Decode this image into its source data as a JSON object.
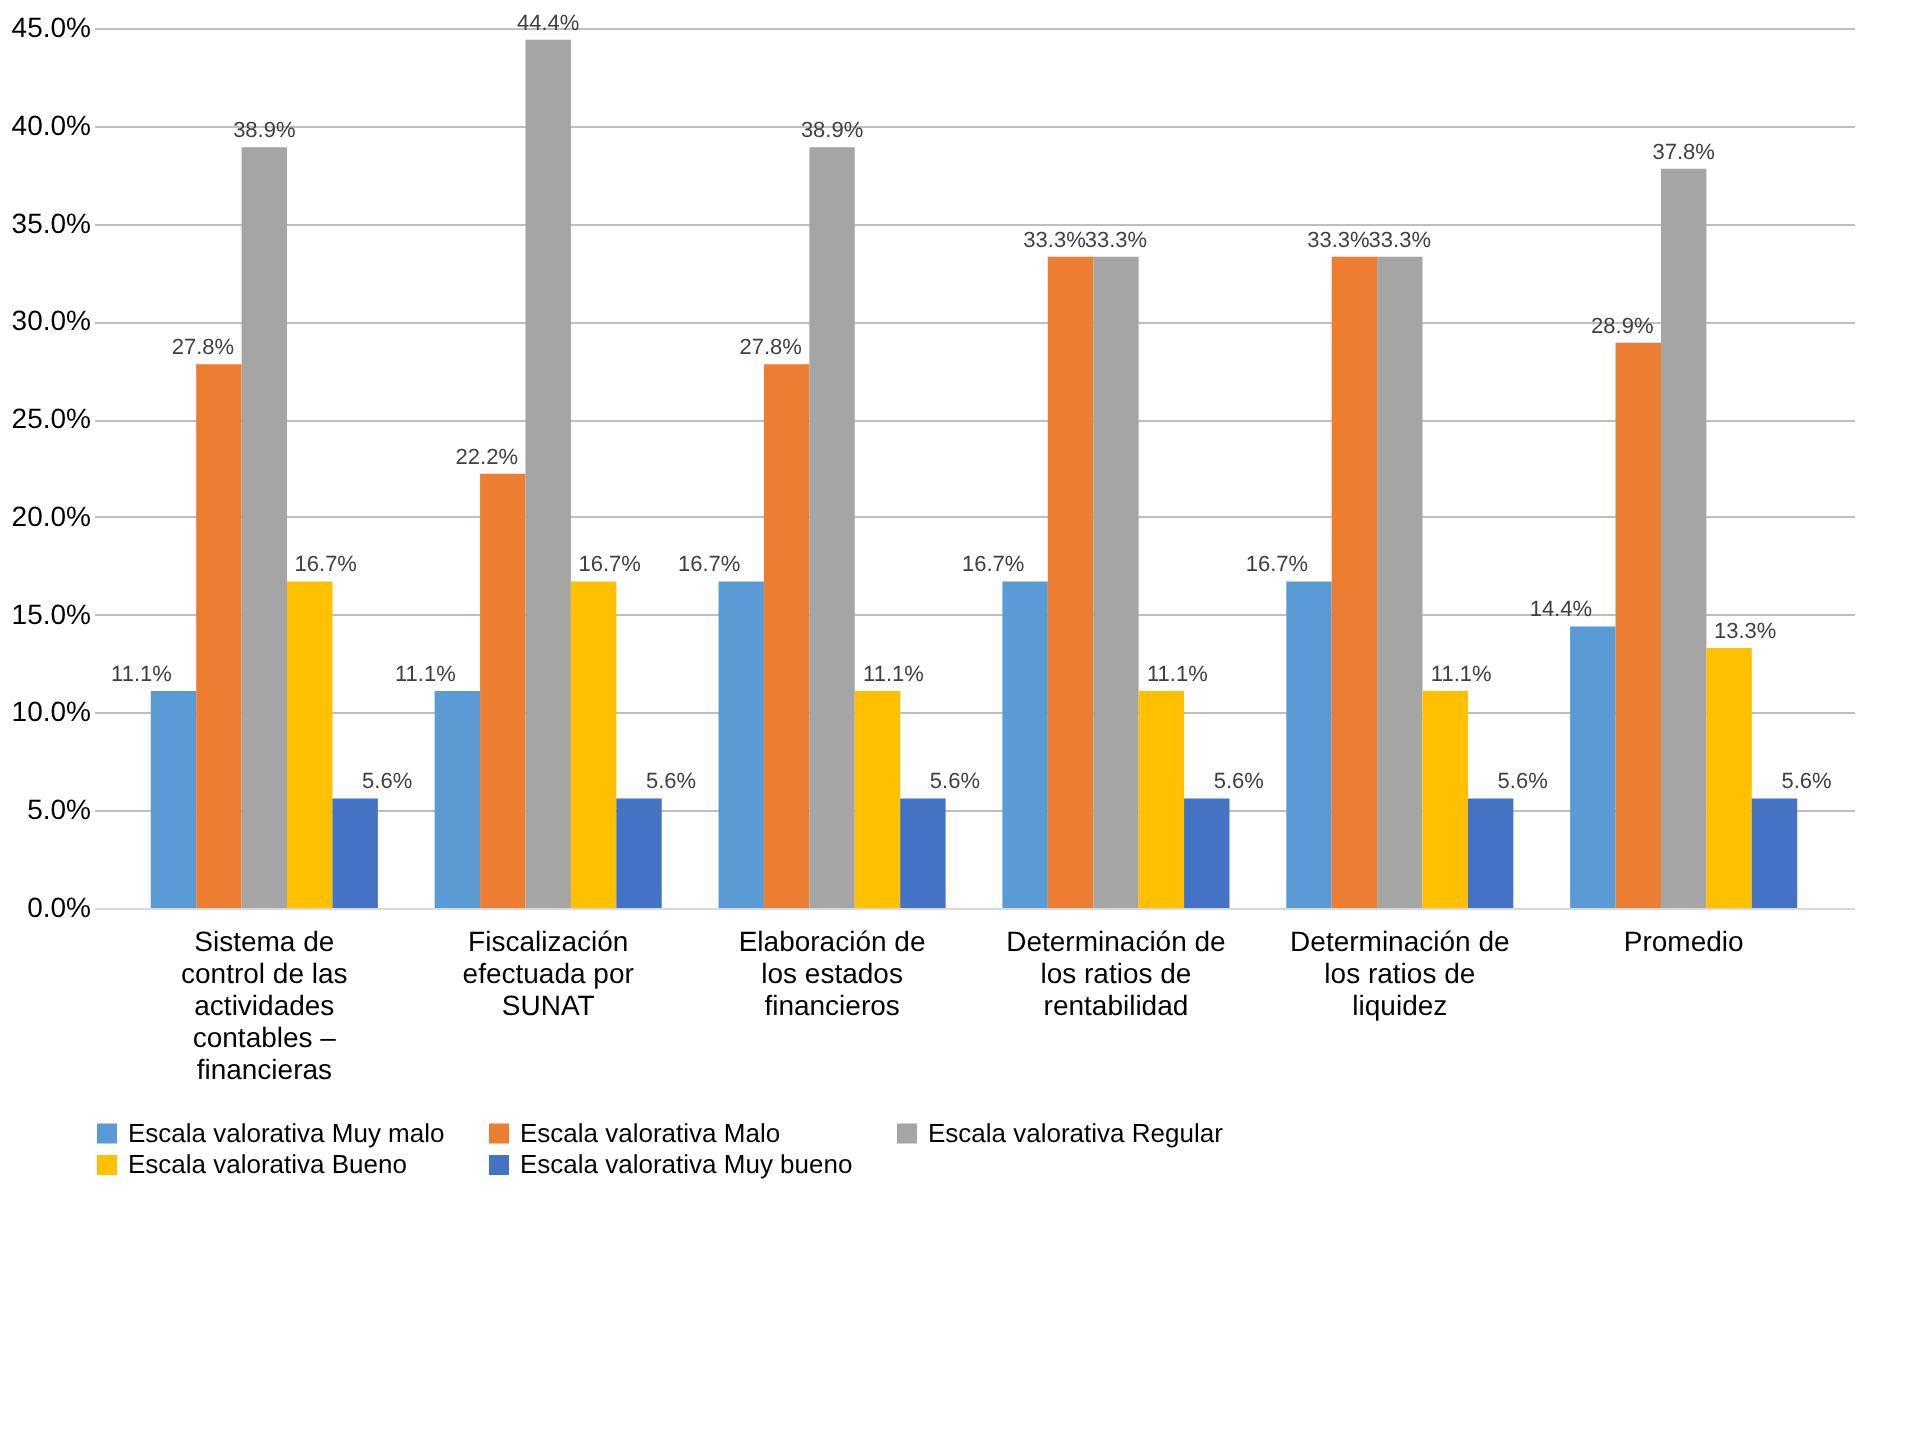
{
  "chart_data": {
    "type": "bar",
    "categories": [
      "Sistema de control de las actividades contables – financieras",
      "Fiscalización efectuada por SUNAT",
      "Elaboración de los estados financieros",
      "Determinación de los ratios de rentabilidad",
      "Determinación de los ratios de liquidez",
      "Promedio"
    ],
    "series": [
      {
        "name": "Escala valorativa Muy malo",
        "color": "#5b9bd5",
        "values": [
          11.1,
          11.1,
          16.7,
          16.7,
          16.7,
          14.4
        ],
        "value_labels": [
          "11.1%",
          "11.1%",
          "16.7%",
          "16.7%",
          "16.7%",
          "14.4%"
        ]
      },
      {
        "name": "Escala valorativa Malo",
        "color": "#ed7d31",
        "values": [
          27.8,
          22.2,
          27.8,
          33.3,
          33.3,
          28.9
        ],
        "value_labels": [
          "27.8%",
          "22.2%",
          "27.8%",
          "33.3%",
          "33.3%",
          "28.9%"
        ]
      },
      {
        "name": "Escala valorativa Regular",
        "color": "#a5a5a5",
        "values": [
          38.9,
          44.4,
          38.9,
          33.3,
          33.3,
          37.8
        ],
        "value_labels": [
          "38.9%",
          "44.4%",
          "38.9%",
          "33.3%",
          "33.3%",
          "37.8%"
        ]
      },
      {
        "name": "Escala valorativa Bueno",
        "color": "#ffc000",
        "values": [
          16.7,
          16.7,
          11.1,
          11.1,
          11.1,
          13.3
        ],
        "value_labels": [
          "16.7%",
          "16.7%",
          "11.1%",
          "11.1%",
          "11.1%",
          "13.3%"
        ]
      },
      {
        "name": "Escala valorativa Muy bueno",
        "color": "#4472c4",
        "values": [
          5.6,
          5.6,
          5.6,
          5.6,
          5.6,
          5.6
        ],
        "value_labels": [
          "5.6%",
          "5.6%",
          "5.6%",
          "5.6%",
          "5.6%",
          "5.6%"
        ]
      }
    ],
    "ylim": [
      0,
      45
    ],
    "yticks": [
      {
        "value": 0,
        "label": "0.0%"
      },
      {
        "value": 5,
        "label": "5.0%"
      },
      {
        "value": 10,
        "label": "10.0%"
      },
      {
        "value": 15,
        "label": "15.0%"
      },
      {
        "value": 20,
        "label": "20.0%"
      },
      {
        "value": 25,
        "label": "25.0%"
      },
      {
        "value": 30,
        "label": "30.0%"
      },
      {
        "value": 35,
        "label": "35.0%"
      },
      {
        "value": 40,
        "label": "40.0%"
      },
      {
        "value": 45,
        "label": "45.0%"
      }
    ],
    "grid": "y",
    "legend": "bottom"
  }
}
